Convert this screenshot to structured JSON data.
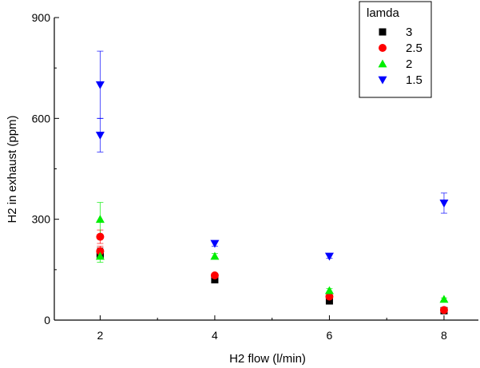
{
  "chart_data": {
    "type": "scatter",
    "title": "",
    "xlabel": "H2 flow (l/min)",
    "ylabel": "H2 in exhaust (ppm)",
    "xlim": [
      1.2,
      8.6
    ],
    "ylim": [
      0,
      900
    ],
    "xticks": [
      2,
      4,
      6,
      8
    ],
    "yticks": [
      0,
      300,
      600,
      900
    ],
    "grid": false,
    "legend": {
      "title": "lamda",
      "position": "top-right"
    },
    "series": [
      {
        "name": "3",
        "marker": "square",
        "color": "#000000",
        "points": [
          {
            "x": 2,
            "y": 200,
            "err": 15
          },
          {
            "x": 2,
            "y": 195,
            "err": 10
          },
          {
            "x": 4,
            "y": 120,
            "err": 5
          },
          {
            "x": 6,
            "y": 57,
            "err": 5
          },
          {
            "x": 8,
            "y": 28,
            "err": 4
          }
        ]
      },
      {
        "name": "2.5",
        "marker": "circle",
        "color": "#ff0000",
        "points": [
          {
            "x": 2,
            "y": 248,
            "err": 20
          },
          {
            "x": 2,
            "y": 205,
            "err": 15
          },
          {
            "x": 4,
            "y": 133,
            "err": 6
          },
          {
            "x": 6,
            "y": 70,
            "err": 5
          },
          {
            "x": 8,
            "y": 30,
            "err": 4
          }
        ]
      },
      {
        "name": "2",
        "marker": "triangle-up",
        "color": "#00ee00",
        "points": [
          {
            "x": 2,
            "y": 300,
            "err": 50
          },
          {
            "x": 2,
            "y": 190,
            "err": 18
          },
          {
            "x": 4,
            "y": 190,
            "err": 8
          },
          {
            "x": 6,
            "y": 88,
            "err": 6
          },
          {
            "x": 8,
            "y": 62,
            "err": 4
          }
        ]
      },
      {
        "name": "1.5",
        "marker": "triangle-down",
        "color": "#0000ff",
        "points": [
          {
            "x": 2,
            "y": 700,
            "err": 100
          },
          {
            "x": 2,
            "y": 550,
            "err": 50
          },
          {
            "x": 4,
            "y": 228,
            "err": 8
          },
          {
            "x": 6,
            "y": 190,
            "err": 6
          },
          {
            "x": 8,
            "y": 348,
            "err": 30
          }
        ]
      }
    ]
  }
}
